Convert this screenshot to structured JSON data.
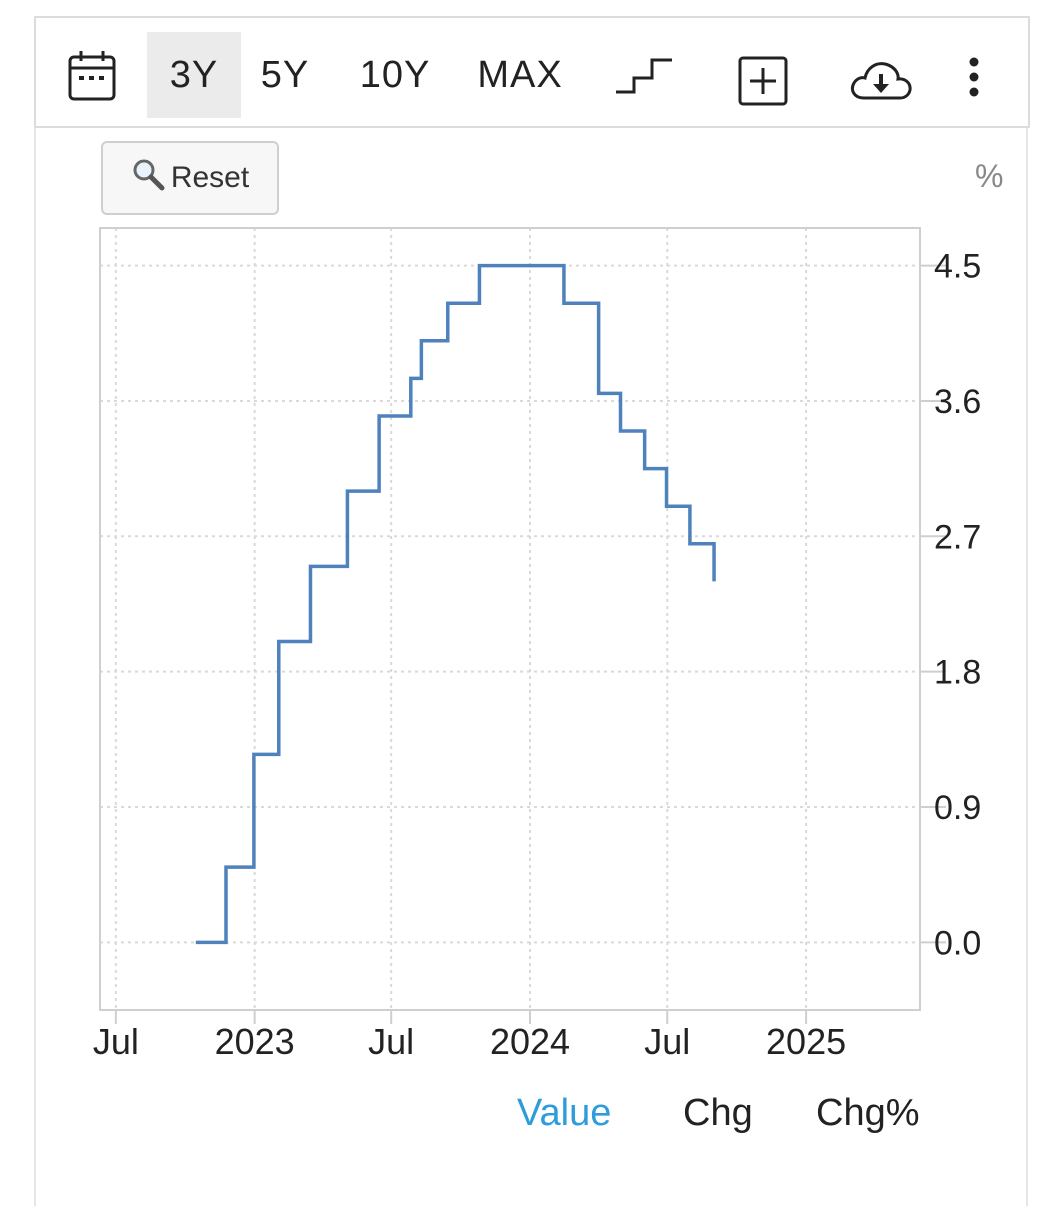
{
  "toolbar": {
    "calendar_icon": "calendar-icon",
    "ranges": [
      {
        "label": "3Y",
        "active": true
      },
      {
        "label": "5Y",
        "active": false
      },
      {
        "label": "10Y",
        "active": false
      },
      {
        "label": "MAX",
        "active": false
      }
    ],
    "step_icon": "step-line-icon",
    "add_icon": "plus-box-icon",
    "download_icon": "cloud-download-icon",
    "menu_icon": "vertical-dots-icon"
  },
  "reset": {
    "label": "Reset",
    "icon": "magnifier-icon"
  },
  "unit": "%",
  "chart_data": {
    "type": "line",
    "line_style": "step",
    "color": "#4f81bd",
    "title": "",
    "xlabel": "",
    "ylabel": "",
    "ylim": [
      -0.45,
      4.75
    ],
    "yticks": [
      "0.0",
      "0.9",
      "1.8",
      "2.7",
      "3.6",
      "4.5"
    ],
    "xlim": [
      "2022-06-10",
      "2025-06-01"
    ],
    "xticks": [
      {
        "date": "2022-07-01",
        "label": "Jul"
      },
      {
        "date": "2023-01-01",
        "label": "2023"
      },
      {
        "date": "2023-07-01",
        "label": "Jul"
      },
      {
        "date": "2024-01-01",
        "label": "2024"
      },
      {
        "date": "2024-07-01",
        "label": "Jul"
      },
      {
        "date": "2025-01-01",
        "label": "2025"
      }
    ],
    "grid": true,
    "series": [
      {
        "points": [
          {
            "x": "2022-10-15",
            "y": 0.0
          },
          {
            "x": "2022-11-24",
            "y": 0.5
          },
          {
            "x": "2022-12-31",
            "y": 1.25
          },
          {
            "x": "2023-02-02",
            "y": 2.0
          },
          {
            "x": "2023-03-16",
            "y": 2.5
          },
          {
            "x": "2023-05-04",
            "y": 3.0
          },
          {
            "x": "2023-06-15",
            "y": 3.5
          },
          {
            "x": "2023-07-27",
            "y": 3.75
          },
          {
            "x": "2023-08-10",
            "y": 4.0
          },
          {
            "x": "2023-09-14",
            "y": 4.25
          },
          {
            "x": "2023-10-26",
            "y": 4.5
          },
          {
            "x": "2024-02-15",
            "y": 4.25
          },
          {
            "x": "2024-04-01",
            "y": 3.65
          },
          {
            "x": "2024-04-30",
            "y": 3.4
          },
          {
            "x": "2024-06-01",
            "y": 3.15
          },
          {
            "x": "2024-06-30",
            "y": 2.9
          },
          {
            "x": "2024-07-31",
            "y": 2.65
          },
          {
            "x": "2024-09-01",
            "y": 2.4
          }
        ]
      }
    ]
  },
  "modes": [
    {
      "label": "Value",
      "active": true
    },
    {
      "label": "Chg",
      "active": false
    },
    {
      "label": "Chg%",
      "active": false
    }
  ]
}
